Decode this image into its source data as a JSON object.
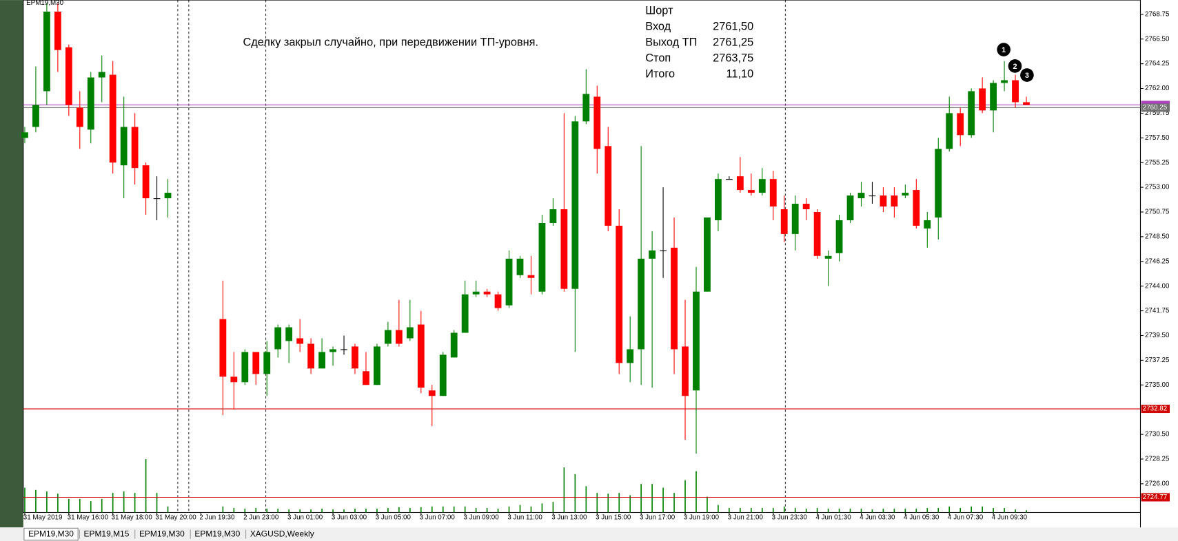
{
  "chart_data": {
    "type": "candlestick",
    "symbol": "EPM19,M30",
    "annotation": "Сделку закрыл случайно, при передвижении ТП-уровня.",
    "trade_panel": [
      {
        "label": "Шорт"
      },
      {
        "label": "Вход",
        "value": "2761,50"
      },
      {
        "label": "Выход ТП",
        "value": "2761,25"
      },
      {
        "label": "Стоп",
        "value": "2763,75"
      },
      {
        "label": "Итого",
        "value": "11,10"
      }
    ],
    "markers": [
      "1",
      "2",
      "3"
    ],
    "tabs": [
      "EPM19,M30",
      "EPM19,M15",
      "EPM19,M30",
      "EPM19,M30",
      "XAGUSD,Weekly"
    ],
    "up_color": "#008000",
    "down_color": "#ff0000",
    "doji_color": "#000000",
    "volume_color": "#008000",
    "categories": [
      "31 May 2019",
      null,
      null,
      null,
      "31 May 16:00",
      null,
      null,
      null,
      "31 May 18:00",
      null,
      null,
      null,
      "31 May 20:00",
      null,
      null,
      null,
      "2 Jun 19:30",
      null,
      null,
      null,
      "2 Jun 23:00",
      null,
      null,
      null,
      "3 Jun 01:00",
      null,
      null,
      null,
      "3 Jun 03:00",
      null,
      null,
      null,
      "3 Jun 05:00",
      null,
      null,
      null,
      "3 Jun 07:00",
      null,
      null,
      null,
      "3 Jun 09:00",
      null,
      null,
      null,
      "3 Jun 11:00",
      null,
      null,
      null,
      "3 Jun 13:00",
      null,
      null,
      null,
      "3 Jun 15:00",
      null,
      null,
      null,
      "3 Jun 17:00",
      null,
      null,
      null,
      "3 Jun 19:00",
      null,
      null,
      null,
      "3 Jun 21:00",
      null,
      null,
      null,
      "3 Jun 23:30",
      null,
      null,
      null,
      "4 Jun 01:30",
      null,
      null,
      null,
      "4 Jun 03:30",
      null,
      null,
      null,
      "4 Jun 05:30",
      null,
      null,
      null,
      "4 Jun 07:30",
      null,
      null,
      null,
      "4 Jun 09:30",
      null,
      null,
      null
    ],
    "open": [
      2757.5,
      2758.5,
      2761.75,
      2769,
      2765.75,
      2760.25,
      2758.25,
      2763,
      2763.25,
      2755,
      2758.5,
      2755,
      2752,
      2752,
      null,
      null,
      null,
      null,
      2741,
      2735.75,
      2735.25,
      2738,
      2736,
      2738.25,
      2739,
      2739.25,
      2738.75,
      2736.5,
      2738,
      2738.25,
      2738.5,
      2736.25,
      2735,
      2738.75,
      2740,
      2739.25,
      2740.5,
      2734.5,
      2734,
      2737.5,
      2739.75,
      2743.25,
      2743.5,
      2743.25,
      2742.25,
      2745,
      2745,
      2743.5,
      2749.75,
      2751,
      2743.75,
      2759,
      2761.25,
      2756.75,
      2749.5,
      2737,
      2738.25,
      2746.5,
      2747.25,
      2747.5,
      2738.5,
      2734.5,
      2743.5,
      2750,
      2753.75,
      2754,
      2752.75,
      2752.5,
      2753.75,
      2751,
      2748.75,
      2751.5,
      2750.75,
      2746.5,
      2747,
      2750,
      2752,
      2752.25,
      2752.25,
      2752.25,
      2752.25,
      2752.75,
      2749.25,
      2750.25,
      2756.5,
      2759.75,
      2757.75,
      2762,
      2760,
      2762.5,
      2762.75,
      2760.75
    ],
    "high": [
      2758.5,
      2764,
      2769.75,
      2769.75,
      2766,
      2761.75,
      2763.5,
      2765,
      2764.5,
      2761.25,
      2759.75,
      2755.25,
      2754,
      2753.75,
      null,
      null,
      null,
      null,
      2744.5,
      2738,
      2738.25,
      2738,
      2739,
      2740.5,
      2740.5,
      2741,
      2739.25,
      2739.25,
      2738.5,
      2739.5,
      2738.75,
      2738,
      2738.75,
      2740.75,
      2742.75,
      2742.75,
      2741.75,
      2735,
      2738,
      2740,
      2744.5,
      2744.5,
      2743.75,
      2743.5,
      2747.25,
      2746.75,
      2746.75,
      2750.5,
      2752,
      2759.75,
      2759.5,
      2763.75,
      2762.25,
      2758.5,
      2751,
      2741.25,
      2756.75,
      2749,
      2753,
      2750.25,
      2742.75,
      2745.75,
      2750.25,
      2754.25,
      2754,
      2755.75,
      2754.25,
      2754.75,
      2754.5,
      2752.25,
      2752.25,
      2752,
      2751,
      2747.25,
      2750.5,
      2752.5,
      2753.5,
      2753.5,
      2753,
      2753,
      2753.25,
      2753.75,
      2750.75,
      2757.5,
      2761.25,
      2760.25,
      2762,
      2763,
      2762.75,
      2764.5,
      2763.25,
      2761.25
    ],
    "low": [
      2757,
      2758,
      2760.5,
      2763.5,
      2759.5,
      2756.5,
      2757,
      2760.75,
      2754.25,
      2752,
      2753.25,
      2750.5,
      2750,
      2750.25,
      null,
      null,
      null,
      null,
      2732.25,
      2732.75,
      2735,
      2735,
      2734,
      2737.5,
      2737,
      2738,
      2736,
      2736.5,
      2736.75,
      2737.75,
      2736,
      2735,
      2735,
      2738.5,
      2738.5,
      2739,
      2734.25,
      2731.25,
      2734,
      2737.5,
      2739.75,
      2743,
      2743,
      2741.75,
      2742,
      2744.75,
      2743.25,
      2743.25,
      2749.5,
      2743.5,
      2738,
      2758.75,
      2754.25,
      2749,
      2736,
      2735.25,
      2735,
      2734.75,
      2744.75,
      2736,
      2730,
      2728.75,
      2743.5,
      2749,
      2753.75,
      2752.5,
      2752.25,
      2752.25,
      2750,
      2748,
      2747.25,
      2750,
      2746.5,
      2744,
      2746.25,
      2749.75,
      2751.25,
      2751.5,
      2750.75,
      2750.25,
      2752,
      2749.25,
      2747.5,
      2748.25,
      2756.25,
      2756.75,
      2757.5,
      2759.75,
      2758,
      2761.75,
      2760.25,
      2760.5
    ],
    "close": [
      2758,
      2760.5,
      2769,
      2765.5,
      2760.5,
      2758.5,
      2763,
      2763.5,
      2755.25,
      2758.5,
      2754.75,
      2752,
      2752,
      2752.5,
      null,
      null,
      null,
      null,
      2735.75,
      2735.25,
      2738,
      2736,
      2738,
      2740.25,
      2740.25,
      2738.75,
      2736.5,
      2738,
      2738.25,
      2738.25,
      2736.5,
      2735,
      2738.5,
      2740,
      2738.75,
      2740.25,
      2734.75,
      2734,
      2737.75,
      2739.75,
      2743.25,
      2743.5,
      2743.25,
      2742,
      2746.5,
      2746.5,
      2744.75,
      2749.75,
      2751,
      2743.75,
      2759,
      2761.5,
      2756.5,
      2749.5,
      2737,
      2738.25,
      2746.5,
      2747.25,
      2747.25,
      2738.25,
      2734,
      2743.5,
      2750.25,
      2753.75,
      2753.75,
      2752.75,
      2752.5,
      2753.75,
      2751.25,
      2748.75,
      2751.5,
      2751,
      2746.75,
      2746.75,
      2750,
      2752.25,
      2752.5,
      2752.25,
      2751.25,
      2751.25,
      2752.5,
      2749.5,
      2750,
      2756.5,
      2759.75,
      2757.75,
      2761.75,
      2760,
      2762.5,
      2762.75,
      2760.75,
      2760.5
    ],
    "volume": [
      33,
      30,
      28,
      25,
      18,
      18,
      15,
      18,
      26,
      28,
      26,
      71,
      26,
      8,
      null,
      null,
      null,
      null,
      8,
      6,
      5,
      6,
      5,
      5,
      4,
      4,
      4,
      5,
      4,
      4,
      5,
      5,
      5,
      6,
      7,
      6,
      7,
      8,
      8,
      8,
      8,
      6,
      6,
      5,
      8,
      10,
      8,
      12,
      14,
      60,
      51,
      35,
      26,
      25,
      26,
      23,
      38,
      38,
      33,
      26,
      43,
      55,
      21,
      10,
      6,
      6,
      6,
      6,
      6,
      8,
      6,
      5,
      6,
      5,
      5,
      5,
      5,
      4,
      5,
      5,
      5,
      5,
      6,
      6,
      8,
      6,
      8,
      8,
      6,
      6,
      4,
      3
    ],
    "ylim": [
      2723.39,
      2770.05
    ],
    "yticks": [
      2768.75,
      {
        "value": 2766.5,
        "label": "2766.50"
      },
      2764.25,
      {
        "value": 2762,
        "label": "2762.00"
      },
      2759.75,
      {
        "value": 2757.5,
        "label": "2757.50"
      },
      2755.25,
      {
        "value": 2753,
        "label": "2753.00"
      },
      2750.75,
      {
        "value": 2748.5,
        "label": "2748.50"
      },
      2746.25,
      {
        "value": 2744,
        "label": "2744.00"
      },
      2741.75,
      {
        "value": 2739.5,
        "label": "2739.50"
      },
      2737.25,
      {
        "value": 2735,
        "label": "2735.00"
      },
      {
        "value": 2730.5,
        "label": "2730.50"
      },
      2728.25,
      {
        "value": 2726,
        "label": "2726.00"
      }
    ],
    "levels": [
      {
        "value": 2760.5,
        "color": "#b040c0",
        "show_label": false
      },
      {
        "value": 2760.25,
        "color": "#707070",
        "show_label": true
      },
      {
        "value": 2732.82,
        "color": "#d00000",
        "show_label": true
      },
      {
        "value": 2724.77,
        "color": "#d00000",
        "show_label": true
      }
    ]
  }
}
